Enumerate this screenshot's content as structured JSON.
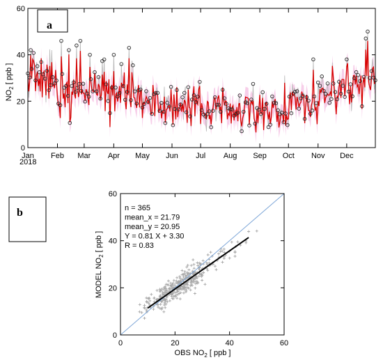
{
  "panel_a": {
    "label": "a",
    "ylabel": "NO",
    "ylabel_sub": "2",
    "ylabel_unit": " [ ppb ]",
    "year_label": "2018"
  },
  "panel_b": {
    "label": "b",
    "xlabel": "OBS NO",
    "xlabel_sub": "2",
    "xlabel_unit": " [ ppb ]",
    "ylabel": "MODEL NO",
    "ylabel_sub": "2",
    "ylabel_unit": " [ ppb ]",
    "stats": [
      "n = 365",
      "mean_x = 21.79",
      "mean_y = 20.95",
      "Y = 0.81 X + 3.30",
      "R = 0.83"
    ]
  },
  "colors": {
    "observed_line": "#b8b8b8",
    "observed_marker": "#2a2a2a",
    "model_line": "#d80000",
    "model_shade": "#f4bde2",
    "scatter_point": "#a8a8a8",
    "one_to_one": "#7fa7d8",
    "regression": "#000000"
  },
  "chart_data": [
    {
      "type": "line",
      "panel": "a",
      "x_unit": "day of year 2018",
      "xlim": [
        1,
        365
      ],
      "ylim": [
        0,
        60
      ],
      "ytick_labels": [
        "0",
        "20",
        "40",
        "60"
      ],
      "xtick_labels": [
        "Jan",
        "Feb",
        "Mar",
        "Apr",
        "May",
        "Jun",
        "Jul",
        "Aug",
        "Sep",
        "Oct",
        "Nov",
        "Dec"
      ],
      "xtick_days": [
        1,
        32,
        60,
        91,
        121,
        152,
        182,
        213,
        244,
        274,
        305,
        335
      ],
      "monthly_mean_obs": [
        30,
        24,
        26,
        24,
        21,
        19,
        17,
        16,
        17,
        20,
        24,
        27
      ],
      "monthly_mean_model": [
        29,
        23,
        24,
        22,
        20,
        18,
        17,
        16,
        16,
        19,
        23,
        27
      ],
      "obs_peaks": [
        {
          "x": 4,
          "y": 42
        },
        {
          "x": 36,
          "y": 46
        },
        {
          "x": 44,
          "y": 42
        },
        {
          "x": 52,
          "y": 44
        },
        {
          "x": 56,
          "y": 46
        },
        {
          "x": 66,
          "y": 40
        },
        {
          "x": 91,
          "y": 40
        },
        {
          "x": 99,
          "y": 36
        },
        {
          "x": 107,
          "y": 43
        },
        {
          "x": 300,
          "y": 38
        },
        {
          "x": 335,
          "y": 38
        },
        {
          "x": 357,
          "y": 50
        },
        {
          "x": 355,
          "y": 47
        }
      ],
      "series": []
    },
    {
      "type": "scatter",
      "panel": "b",
      "xlim": [
        0,
        60
      ],
      "ylim": [
        0,
        60
      ],
      "xtick_labels": [
        "0",
        "20",
        "40",
        "60"
      ],
      "ytick_labels": [
        "0",
        "20",
        "40",
        "60"
      ],
      "n": 365,
      "mean_x": 21.79,
      "mean_y": 20.95,
      "regression": {
        "slope": 0.81,
        "intercept": 3.3,
        "x_range": [
          10,
          47
        ]
      },
      "r": 0.83,
      "one_to_one_line": true,
      "points": []
    }
  ]
}
